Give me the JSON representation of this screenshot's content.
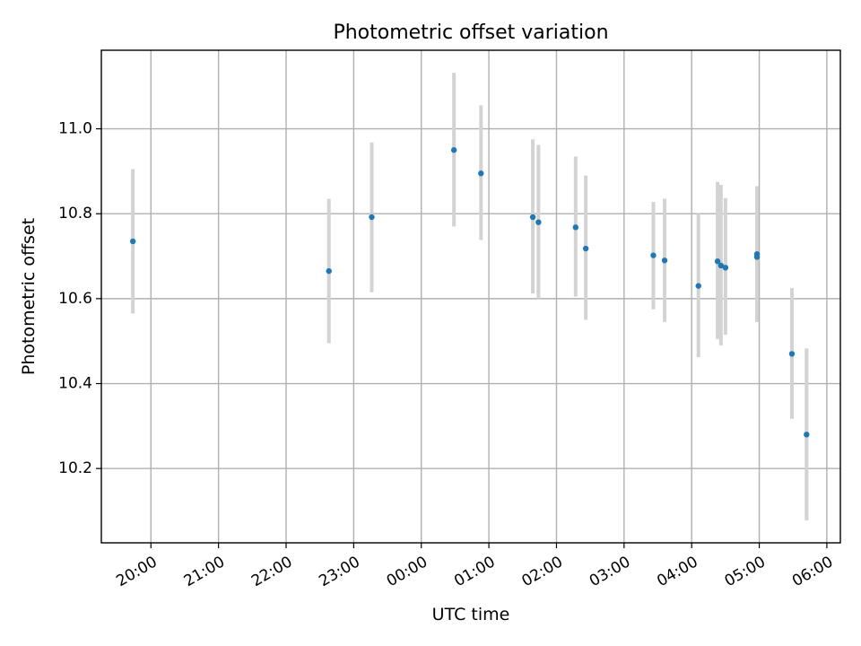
{
  "chart_data": {
    "type": "scatter",
    "title": "Photometric offset variation",
    "xlabel": "UTC time",
    "ylabel": "Photometric offset",
    "x_ticks": [
      "20:00",
      "21:00",
      "22:00",
      "23:00",
      "00:00",
      "01:00",
      "02:00",
      "03:00",
      "04:00",
      "05:00",
      "06:00"
    ],
    "y_ticks": [
      "10.2",
      "10.4",
      "10.6",
      "10.8",
      "11.0"
    ],
    "y_tick_values": [
      10.2,
      10.4,
      10.6,
      10.8,
      11.0
    ],
    "xlim": [
      "19:16",
      "06:12"
    ],
    "ylim": [
      10.025,
      11.185
    ],
    "grid": true,
    "series": [
      {
        "error_color": "#d3d3d3",
        "marker_color": "#1f77b4",
        "points": [
          {
            "x": "19:44",
            "y": 10.735,
            "ylo": 10.565,
            "yhi": 10.905
          },
          {
            "x": "22:38",
            "y": 10.665,
            "ylo": 10.495,
            "yhi": 10.835
          },
          {
            "x": "23:16",
            "y": 10.792,
            "ylo": 10.615,
            "yhi": 10.968
          },
          {
            "x": "00:29",
            "y": 10.95,
            "ylo": 10.77,
            "yhi": 11.132
          },
          {
            "x": "00:53",
            "y": 10.895,
            "ylo": 10.738,
            "yhi": 11.055
          },
          {
            "x": "01:39",
            "y": 10.792,
            "ylo": 10.612,
            "yhi": 10.975
          },
          {
            "x": "01:44",
            "y": 10.78,
            "ylo": 10.6,
            "yhi": 10.962
          },
          {
            "x": "02:17",
            "y": 10.768,
            "ylo": 10.605,
            "yhi": 10.935
          },
          {
            "x": "02:26",
            "y": 10.718,
            "ylo": 10.55,
            "yhi": 10.89
          },
          {
            "x": "03:26",
            "y": 10.702,
            "ylo": 10.575,
            "yhi": 10.828
          },
          {
            "x": "03:36",
            "y": 10.69,
            "ylo": 10.545,
            "yhi": 10.835
          },
          {
            "x": "04:06",
            "y": 10.63,
            "ylo": 10.462,
            "yhi": 10.8
          },
          {
            "x": "04:23",
            "y": 10.688,
            "ylo": 10.505,
            "yhi": 10.875
          },
          {
            "x": "04:26",
            "y": 10.678,
            "ylo": 10.49,
            "yhi": 10.868
          },
          {
            "x": "04:30",
            "y": 10.673,
            "ylo": 10.515,
            "yhi": 10.837
          },
          {
            "x": "04:58",
            "y": 10.705,
            "ylo": 10.545,
            "yhi": 10.865
          },
          {
            "x": "04:58",
            "y": 10.698,
            "ylo": 10.545,
            "yhi": 10.865
          },
          {
            "x": "05:29",
            "y": 10.47,
            "ylo": 10.317,
            "yhi": 10.625
          },
          {
            "x": "05:42",
            "y": 10.28,
            "ylo": 10.078,
            "yhi": 10.483
          }
        ]
      }
    ]
  }
}
